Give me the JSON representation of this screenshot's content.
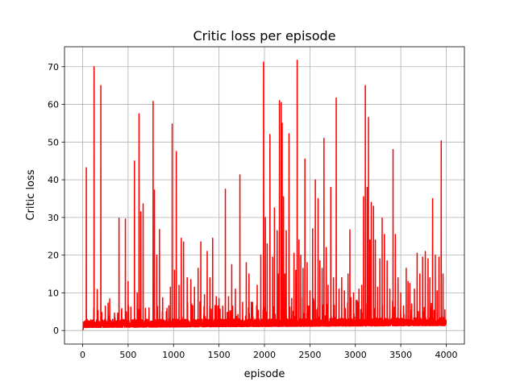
{
  "chart_data": {
    "type": "line",
    "title": "Critic loss per episode",
    "xlabel": "episode",
    "ylabel": "Critic loss",
    "xlim": [
      -200,
      4200
    ],
    "ylim": [
      -3.6,
      75.3
    ],
    "xticks": [
      0,
      500,
      1000,
      1500,
      2000,
      2500,
      3000,
      3500,
      4000
    ],
    "yticks": [
      0,
      10,
      20,
      30,
      40,
      50,
      60,
      70
    ],
    "grid": true,
    "series": [
      {
        "color": "#ff0000",
        "n_points": 4000,
        "baseline": {
          "start": 0.8,
          "end": 1.3,
          "noise": 0.7
        },
        "spikes": [
          [
            40,
            43.2
          ],
          [
            60,
            1.8
          ],
          [
            110,
            1.2
          ],
          [
            125,
            70.0
          ],
          [
            160,
            10.9
          ],
          [
            185,
            1.7
          ],
          [
            200,
            65.0
          ],
          [
            240,
            2.5
          ],
          [
            280,
            7.3
          ],
          [
            330,
            3.0
          ],
          [
            360,
            2.2
          ],
          [
            400,
            29.8
          ],
          [
            430,
            5.8
          ],
          [
            470,
            29.6
          ],
          [
            500,
            13.0
          ],
          [
            530,
            6.2
          ],
          [
            570,
            45.0
          ],
          [
            600,
            10.0
          ],
          [
            620,
            57.5
          ],
          [
            640,
            31.5
          ],
          [
            665,
            33.6
          ],
          [
            690,
            5.9
          ],
          [
            730,
            6.0
          ],
          [
            775,
            60.8
          ],
          [
            790,
            37.3
          ],
          [
            815,
            20.0
          ],
          [
            845,
            26.8
          ],
          [
            880,
            8.7
          ],
          [
            920,
            5.0
          ],
          [
            965,
            11.5
          ],
          [
            985,
            54.8
          ],
          [
            1010,
            16.0
          ],
          [
            1030,
            47.5
          ],
          [
            1060,
            12.0
          ],
          [
            1085,
            24.5
          ],
          [
            1110,
            23.5
          ],
          [
            1150,
            14.0
          ],
          [
            1190,
            13.5
          ],
          [
            1230,
            11.5
          ],
          [
            1270,
            16.5
          ],
          [
            1300,
            23.5
          ],
          [
            1340,
            9.5
          ],
          [
            1370,
            21.0
          ],
          [
            1400,
            14.0
          ],
          [
            1430,
            24.5
          ],
          [
            1470,
            9.0
          ],
          [
            1500,
            8.5
          ],
          [
            1540,
            6.5
          ],
          [
            1570,
            37.5
          ],
          [
            1605,
            9.0
          ],
          [
            1640,
            17.5
          ],
          [
            1680,
            11.0
          ],
          [
            1730,
            41.3
          ],
          [
            1760,
            7.5
          ],
          [
            1800,
            18.0
          ],
          [
            1830,
            15.0
          ],
          [
            1870,
            7.5
          ],
          [
            1920,
            12.0
          ],
          [
            1960,
            20.0
          ],
          [
            1990,
            71.2
          ],
          [
            2010,
            30.0
          ],
          [
            2030,
            23.0
          ],
          [
            2060,
            52.0
          ],
          [
            2090,
            19.5
          ],
          [
            2110,
            32.5
          ],
          [
            2140,
            26.5
          ],
          [
            2155,
            15.0
          ],
          [
            2165,
            61.0
          ],
          [
            2185,
            60.5
          ],
          [
            2195,
            55.0
          ],
          [
            2210,
            35.5
          ],
          [
            2225,
            15.0
          ],
          [
            2240,
            26.5
          ],
          [
            2270,
            52.2
          ],
          [
            2300,
            8.5
          ],
          [
            2325,
            20.5
          ],
          [
            2345,
            16.0
          ],
          [
            2360,
            71.7
          ],
          [
            2380,
            24.0
          ],
          [
            2400,
            20.0
          ],
          [
            2425,
            16.5
          ],
          [
            2445,
            45.5
          ],
          [
            2470,
            18.0
          ],
          [
            2500,
            10.5
          ],
          [
            2530,
            27.0
          ],
          [
            2560,
            40.0
          ],
          [
            2590,
            35.0
          ],
          [
            2610,
            18.5
          ],
          [
            2635,
            16.5
          ],
          [
            2655,
            51.0
          ],
          [
            2680,
            22.0
          ],
          [
            2700,
            12.0
          ],
          [
            2730,
            38.0
          ],
          [
            2760,
            14.0
          ],
          [
            2790,
            61.7
          ],
          [
            2820,
            11.0
          ],
          [
            2850,
            14.0
          ],
          [
            2880,
            10.5
          ],
          [
            2920,
            15.0
          ],
          [
            2940,
            26.7
          ],
          [
            2980,
            10.0
          ],
          [
            3010,
            8.0
          ],
          [
            3040,
            11.0
          ],
          [
            3070,
            12.0
          ],
          [
            3090,
            35.5
          ],
          [
            3110,
            65.0
          ],
          [
            3130,
            38.0
          ],
          [
            3145,
            56.5
          ],
          [
            3160,
            24.0
          ],
          [
            3175,
            34.0
          ],
          [
            3200,
            33.0
          ],
          [
            3220,
            24.0
          ],
          [
            3245,
            11.5
          ],
          [
            3270,
            19.0
          ],
          [
            3295,
            29.8
          ],
          [
            3320,
            25.5
          ],
          [
            3350,
            18.5
          ],
          [
            3380,
            11.0
          ],
          [
            3415,
            48.0
          ],
          [
            3440,
            25.5
          ],
          [
            3470,
            14.0
          ],
          [
            3500,
            10.0
          ],
          [
            3530,
            6.5
          ],
          [
            3560,
            16.5
          ],
          [
            3580,
            13.0
          ],
          [
            3600,
            12.5
          ],
          [
            3620,
            7.0
          ],
          [
            3650,
            11.0
          ],
          [
            3680,
            20.5
          ],
          [
            3710,
            15.0
          ],
          [
            3740,
            19.5
          ],
          [
            3770,
            21.0
          ],
          [
            3800,
            19.0
          ],
          [
            3820,
            14.0
          ],
          [
            3850,
            35.0
          ],
          [
            3880,
            20.0
          ],
          [
            3900,
            10.5
          ],
          [
            3920,
            19.5
          ],
          [
            3945,
            50.3
          ],
          [
            3965,
            15.0
          ],
          [
            3985,
            5.5
          ],
          [
            3998,
            2.5
          ]
        ]
      }
    ]
  }
}
